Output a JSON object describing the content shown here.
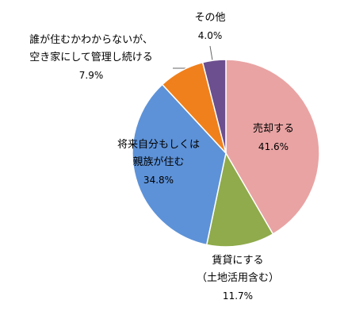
{
  "chart_data": {
    "type": "pie",
    "categories": [
      "売却する",
      "賃貸にする\n（土地活用含む）",
      "将来自分もしくは\n親族が住む",
      "誰が住むかわからないが、\n空き家にして管理し続ける",
      "その他"
    ],
    "values": [
      41.6,
      11.7,
      34.8,
      7.9,
      4.0
    ],
    "value_labels": [
      "41.6%",
      "11.7%",
      "34.8%",
      "7.9%",
      "4.0%"
    ],
    "colors": [
      "#e9a3a3",
      "#8fab4b",
      "#5d92d8",
      "#f0801c",
      "#6b4f8e"
    ]
  }
}
